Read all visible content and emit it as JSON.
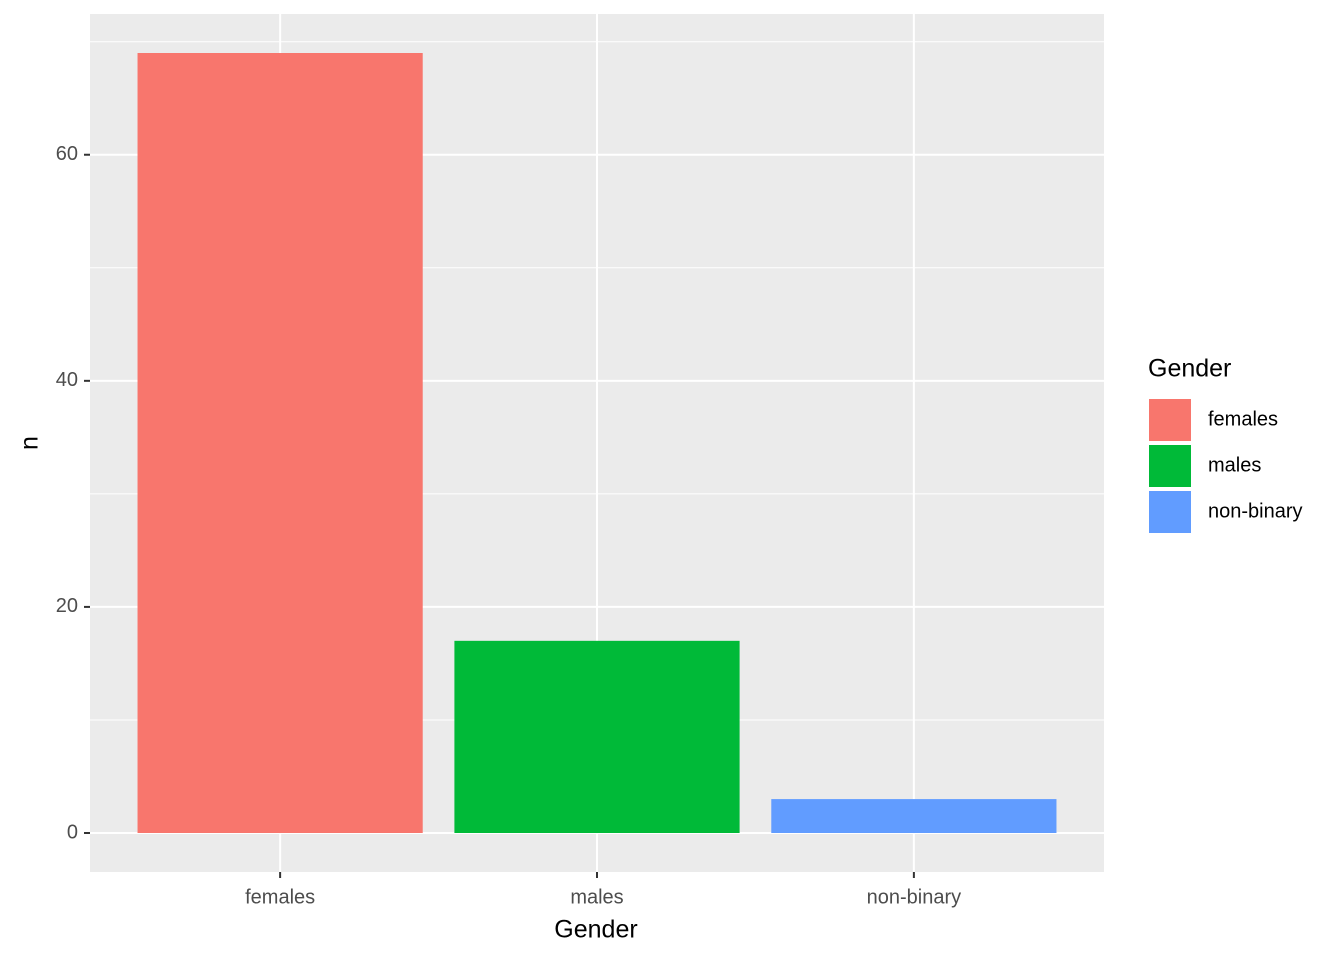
{
  "chart_data": {
    "type": "bar",
    "categories": [
      "females",
      "males",
      "non-binary"
    ],
    "values": [
      69,
      17,
      3
    ],
    "colors": [
      "#F8766D",
      "#00BA38",
      "#619CFF"
    ],
    "x_label": "Gender",
    "y_label": "n",
    "legend_title": "Gender",
    "ylim": [
      -3.45,
      72.45
    ],
    "yticks": [
      0,
      20,
      40,
      60
    ],
    "minor_yticks": [
      10,
      30,
      50,
      70
    ],
    "grid": true,
    "legend_position": "right"
  }
}
